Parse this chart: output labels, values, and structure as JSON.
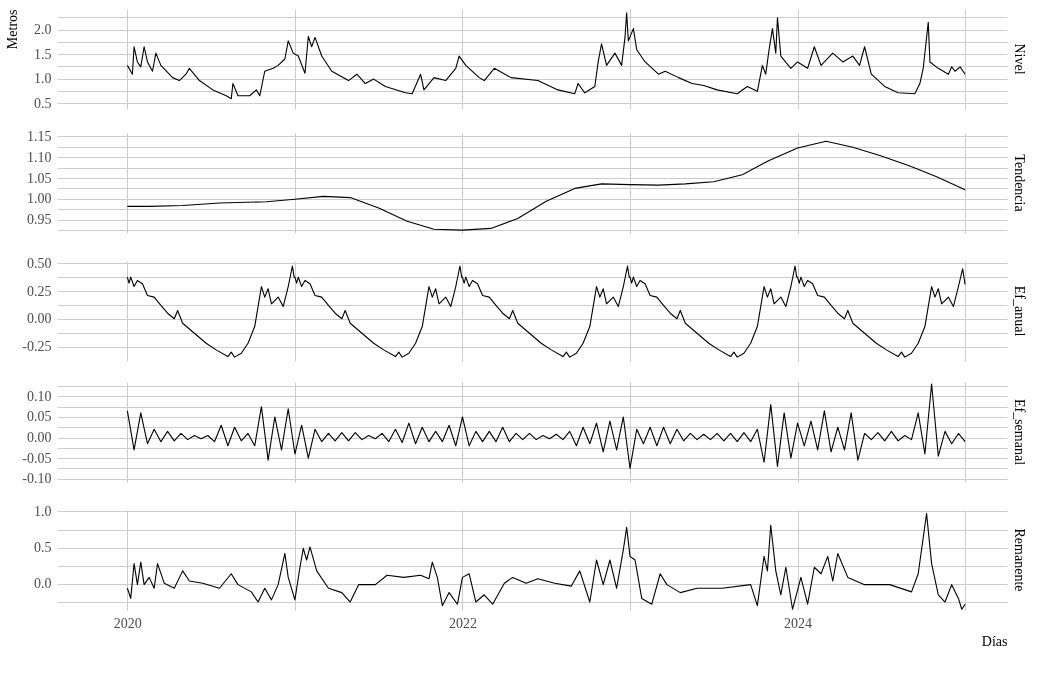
{
  "chart_data": [
    {
      "type": "line",
      "ylabel": "Metros",
      "y2label": "Nivel",
      "tick_labels": "y",
      "grid": true,
      "line_style": "solid",
      "color": "#000000",
      "x": [
        2020.0,
        2020.03,
        2020.04,
        2020.06,
        2020.08,
        2020.1,
        2020.12,
        2020.15,
        2020.17,
        2020.2,
        2020.27,
        2020.31,
        2020.35,
        2020.37,
        2020.43,
        2020.51,
        2020.59,
        2020.62,
        2020.63,
        2020.66,
        2020.73,
        2020.77,
        2020.79,
        2020.82,
        2020.87,
        2020.9,
        2020.94,
        2020.96,
        2020.99,
        2021.02,
        2021.06,
        2021.08,
        2021.1,
        2021.12,
        2021.16,
        2021.22,
        2021.32,
        2021.37,
        2021.42,
        2021.47,
        2021.54,
        2021.66,
        2021.7,
        2021.75,
        2021.77,
        2021.83,
        2021.9,
        2021.96,
        2021.98,
        2022.02,
        2022.1,
        2022.13,
        2022.19,
        2022.29,
        2022.45,
        2022.57,
        2022.67,
        2022.69,
        2022.73,
        2022.79,
        2022.81,
        2022.83,
        2022.86,
        2022.91,
        2022.95,
        2022.97,
        2022.98,
        2022.99,
        2023.02,
        2023.04,
        2023.09,
        2023.17,
        2023.21,
        2023.29,
        2023.37,
        2023.44,
        2023.52,
        2023.64,
        2023.7,
        2023.76,
        2023.79,
        2023.81,
        2023.83,
        2023.85,
        2023.87,
        2023.88,
        2023.9,
        2023.96,
        2024.0,
        2024.06,
        2024.1,
        2024.14,
        2024.21,
        2024.27,
        2024.33,
        2024.37,
        2024.4,
        2024.44,
        2024.52,
        2024.6,
        2024.7,
        2024.73,
        2024.75,
        2024.78,
        2024.79,
        2024.84,
        2024.9,
        2024.92,
        2024.94,
        2024.97,
        2025.0
      ],
      "values": [
        1.27,
        1.09,
        1.65,
        1.34,
        1.24,
        1.65,
        1.34,
        1.15,
        1.52,
        1.27,
        1.02,
        0.96,
        1.09,
        1.21,
        0.96,
        0.77,
        0.65,
        0.59,
        0.9,
        0.65,
        0.65,
        0.77,
        0.65,
        1.15,
        1.21,
        1.27,
        1.4,
        1.77,
        1.52,
        1.46,
        1.11,
        1.86,
        1.65,
        1.84,
        1.46,
        1.15,
        0.96,
        1.09,
        0.9,
        0.99,
        0.84,
        0.71,
        0.69,
        1.09,
        0.77,
        1.02,
        0.96,
        1.21,
        1.46,
        1.27,
        1.02,
        0.96,
        1.21,
        1.02,
        0.96,
        0.77,
        0.69,
        0.9,
        0.71,
        0.84,
        1.34,
        1.71,
        1.27,
        1.52,
        1.27,
        1.84,
        2.34,
        1.77,
        2.02,
        1.59,
        1.34,
        1.09,
        1.15,
        1.02,
        0.9,
        0.86,
        0.77,
        0.69,
        0.84,
        0.74,
        1.27,
        1.09,
        1.59,
        2.02,
        1.52,
        2.24,
        1.46,
        1.21,
        1.34,
        1.21,
        1.65,
        1.27,
        1.52,
        1.34,
        1.46,
        1.27,
        1.65,
        1.09,
        0.84,
        0.71,
        0.69,
        0.9,
        1.21,
        2.15,
        1.34,
        1.21,
        1.09,
        1.24,
        1.15,
        1.24,
        1.09
      ],
      "xlim": [
        2019.58,
        2025.25
      ],
      "xticks": [
        2020,
        {
          "value": 2021,
          "label": null
        },
        2022,
        {
          "value": 2023,
          "label": null
        },
        2024,
        {
          "value": 2025,
          "label": null
        }
      ],
      "ylim": [
        0.38,
        2.42
      ],
      "yticks": [
        0.5,
        {
          "value": 0.75,
          "label": null
        },
        {
          "value": 1.0,
          "label": "1.0"
        },
        {
          "value": 1.25,
          "label": null
        },
        1.5,
        {
          "value": 1.75,
          "label": null
        },
        {
          "value": 2.0,
          "label": "2.0"
        },
        {
          "value": 2.25,
          "label": null
        }
      ]
    },
    {
      "type": "line",
      "y2label": "Tendencia",
      "tick_labels": "y",
      "grid": true,
      "line_style": "solid",
      "color": "#000000",
      "x": [
        2020.0,
        2020.13,
        2020.33,
        2020.55,
        2020.83,
        2021.0,
        2021.17,
        2021.33,
        2021.5,
        2021.67,
        2021.83,
        2022.0,
        2022.17,
        2022.33,
        2022.5,
        2022.67,
        2022.83,
        2023.0,
        2023.17,
        2023.33,
        2023.5,
        2023.67,
        2023.83,
        2024.0,
        2024.17,
        2024.33,
        2024.5,
        2024.67,
        2024.83,
        2025.0
      ],
      "values": [
        0.982,
        0.982,
        0.984,
        0.99,
        0.993,
        0.999,
        1.006,
        1.003,
        0.978,
        0.946,
        0.927,
        0.925,
        0.929,
        0.953,
        0.994,
        1.025,
        1.036,
        1.034,
        1.033,
        1.036,
        1.041,
        1.058,
        1.092,
        1.122,
        1.138,
        1.124,
        1.103,
        1.079,
        1.053,
        1.022
      ],
      "xlim": [
        2019.58,
        2025.25
      ],
      "xticks": [
        2020,
        {
          "value": 2021,
          "label": null
        },
        2022,
        {
          "value": 2023,
          "label": null
        },
        2024,
        {
          "value": 2025,
          "label": null
        }
      ],
      "ylim": [
        0.918,
        1.158
      ],
      "yticks": [
        {
          "value": 0.925,
          "label": null
        },
        0.95,
        {
          "value": 0.975,
          "label": null
        },
        {
          "value": 1.0,
          "label": "1.00"
        },
        {
          "value": 1.025,
          "label": null
        },
        1.05,
        {
          "value": 1.075,
          "label": null
        },
        {
          "value": 1.1,
          "label": "1.10"
        },
        {
          "value": 1.125,
          "label": null
        },
        1.15
      ]
    },
    {
      "type": "line",
      "y2label": "Ef_anual",
      "tick_labels": "y",
      "grid": true,
      "line_style": "solid",
      "color": "#000000",
      "x": [
        2020,
        2020.01,
        2020.02,
        2020.04,
        2020.06,
        2020.09,
        2020.12,
        2020.16,
        2020.2,
        2020.24,
        2020.28,
        2020.3,
        2020.33,
        2020.4,
        2020.47,
        2020.53,
        2020.6,
        2020.62,
        2020.64,
        2020.68,
        2020.72,
        2020.76,
        2020.8,
        2020.82,
        2020.84,
        2020.86,
        2020.9,
        2020.93,
        2020.96,
        2020.985,
        2020.995,
        2021,
        2021.01,
        2021.02,
        2021.04,
        2021.06,
        2021.09,
        2021.12,
        2021.16,
        2021.2,
        2021.24,
        2021.28,
        2021.3,
        2021.33,
        2021.4,
        2021.47,
        2021.53,
        2021.6,
        2021.62,
        2021.64,
        2021.68,
        2021.72,
        2021.76,
        2021.8,
        2021.82,
        2021.84,
        2021.86,
        2021.9,
        2021.93,
        2021.96,
        2021.985,
        2021.995,
        2022,
        2022.01,
        2022.02,
        2022.04,
        2022.06,
        2022.09,
        2022.12,
        2022.16,
        2022.2,
        2022.24,
        2022.28,
        2022.3,
        2022.33,
        2022.4,
        2022.47,
        2022.53,
        2022.6,
        2022.62,
        2022.64,
        2022.68,
        2022.72,
        2022.76,
        2022.8,
        2022.82,
        2022.84,
        2022.86,
        2022.9,
        2022.93,
        2022.96,
        2022.985,
        2022.995,
        2023,
        2023.01,
        2023.02,
        2023.04,
        2023.06,
        2023.09,
        2023.12,
        2023.16,
        2023.2,
        2023.24,
        2023.28,
        2023.3,
        2023.33,
        2023.4,
        2023.47,
        2023.53,
        2023.6,
        2023.62,
        2023.64,
        2023.68,
        2023.72,
        2023.76,
        2023.8,
        2023.82,
        2023.84,
        2023.86,
        2023.9,
        2023.93,
        2023.96,
        2023.985,
        2023.995,
        2024,
        2024.01,
        2024.02,
        2024.04,
        2024.06,
        2024.09,
        2024.12,
        2024.16,
        2024.2,
        2024.24,
        2024.28,
        2024.3,
        2024.33,
        2024.4,
        2024.47,
        2024.53,
        2024.6,
        2024.62,
        2024.64,
        2024.68,
        2024.72,
        2024.76,
        2024.8,
        2024.82,
        2024.84,
        2024.86,
        2024.9,
        2024.93,
        2024.96,
        2024.985,
        2025.0
      ],
      "values": [
        0.375,
        0.32,
        0.375,
        0.29,
        0.345,
        0.315,
        0.21,
        0.195,
        0.12,
        0.05,
        0.0,
        0.075,
        -0.04,
        -0.13,
        -0.22,
        -0.28,
        -0.34,
        -0.3,
        -0.345,
        -0.31,
        -0.22,
        -0.07,
        0.29,
        0.195,
        0.27,
        0.135,
        0.195,
        0.11,
        0.29,
        0.475,
        0.375,
        0.375,
        0.32,
        0.375,
        0.29,
        0.345,
        0.315,
        0.21,
        0.195,
        0.12,
        0.05,
        0.0,
        0.075,
        -0.04,
        -0.13,
        -0.22,
        -0.28,
        -0.34,
        -0.3,
        -0.345,
        -0.31,
        -0.22,
        -0.07,
        0.29,
        0.195,
        0.27,
        0.135,
        0.195,
        0.11,
        0.29,
        0.475,
        0.375,
        0.375,
        0.32,
        0.375,
        0.29,
        0.345,
        0.315,
        0.21,
        0.195,
        0.12,
        0.05,
        0.0,
        0.075,
        -0.04,
        -0.13,
        -0.22,
        -0.28,
        -0.34,
        -0.3,
        -0.345,
        -0.31,
        -0.22,
        -0.07,
        0.29,
        0.195,
        0.27,
        0.135,
        0.195,
        0.11,
        0.29,
        0.475,
        0.375,
        0.375,
        0.32,
        0.375,
        0.29,
        0.345,
        0.315,
        0.21,
        0.195,
        0.12,
        0.05,
        0.0,
        0.075,
        -0.04,
        -0.13,
        -0.22,
        -0.28,
        -0.34,
        -0.3,
        -0.345,
        -0.31,
        -0.22,
        -0.07,
        0.29,
        0.195,
        0.27,
        0.135,
        0.195,
        0.11,
        0.29,
        0.475,
        0.375,
        0.375,
        0.32,
        0.375,
        0.29,
        0.345,
        0.315,
        0.21,
        0.195,
        0.12,
        0.05,
        0.0,
        0.075,
        -0.04,
        -0.13,
        -0.22,
        -0.28,
        -0.34,
        -0.3,
        -0.345,
        -0.31,
        -0.22,
        -0.07,
        0.29,
        0.195,
        0.27,
        0.135,
        0.195,
        0.11,
        0.29,
        0.45,
        0.31
      ],
      "xlim": [
        2019.58,
        2025.25
      ],
      "xticks": [
        2020,
        {
          "value": 2021,
          "label": null
        },
        2022,
        {
          "value": 2023,
          "label": null
        },
        2024,
        {
          "value": 2025,
          "label": null
        }
      ],
      "ylim": [
        -0.38,
        0.52
      ],
      "yticks": [
        {
          "value": -0.25,
          "label": "-0.25"
        },
        {
          "value": -0.125,
          "label": null
        },
        {
          "value": 0,
          "label": "0.00"
        },
        {
          "value": 0.125,
          "label": null
        },
        0.25,
        {
          "value": 0.375,
          "label": null
        },
        {
          "value": 0.5,
          "label": "0.50"
        }
      ]
    },
    {
      "type": "line",
      "y2label": "Ef_semanal",
      "tick_labels": "y",
      "grid": true,
      "line_style": "solid",
      "color": "#000000",
      "x": [
        2020.0,
        2020.04,
        2020.08,
        2020.12,
        2020.16,
        2020.2,
        2020.24,
        2020.28,
        2020.32,
        2020.36,
        2020.4,
        2020.44,
        2020.48,
        2020.52,
        2020.56,
        2020.6,
        2020.64,
        2020.68,
        2020.72,
        2020.76,
        2020.8,
        2020.84,
        2020.88,
        2020.92,
        2020.96,
        2021.0,
        2021.04,
        2021.08,
        2021.12,
        2021.16,
        2021.2,
        2021.24,
        2021.28,
        2021.32,
        2021.36,
        2021.4,
        2021.44,
        2021.48,
        2021.52,
        2021.56,
        2021.6,
        2021.64,
        2021.68,
        2021.72,
        2021.76,
        2021.8,
        2021.84,
        2021.88,
        2021.92,
        2021.96,
        2022.0,
        2022.04,
        2022.08,
        2022.12,
        2022.16,
        2022.2,
        2022.24,
        2022.28,
        2022.32,
        2022.36,
        2022.4,
        2022.44,
        2022.48,
        2022.52,
        2022.56,
        2022.6,
        2022.64,
        2022.68,
        2022.72,
        2022.76,
        2022.8,
        2022.84,
        2022.88,
        2022.92,
        2022.96,
        2023.0,
        2023.04,
        2023.08,
        2023.12,
        2023.16,
        2023.2,
        2023.24,
        2023.28,
        2023.32,
        2023.36,
        2023.4,
        2023.44,
        2023.48,
        2023.52,
        2023.56,
        2023.6,
        2023.64,
        2023.68,
        2023.72,
        2023.76,
        2023.8,
        2023.84,
        2023.88,
        2023.92,
        2023.96,
        2024.0,
        2024.04,
        2024.08,
        2024.12,
        2024.16,
        2024.2,
        2024.24,
        2024.28,
        2024.32,
        2024.36,
        2024.4,
        2024.44,
        2024.48,
        2024.52,
        2024.56,
        2024.6,
        2024.64,
        2024.68,
        2024.72,
        2024.76,
        2024.8,
        2024.84,
        2024.88,
        2024.92,
        2024.96,
        2025.0
      ],
      "values": [
        0.065,
        -0.03,
        0.06,
        -0.015,
        0.02,
        -0.01,
        0.015,
        -0.008,
        0.01,
        -0.005,
        0.005,
        -0.003,
        0.005,
        -0.01,
        0.03,
        -0.02,
        0.025,
        -0.008,
        0.01,
        -0.02,
        0.075,
        -0.055,
        0.05,
        -0.03,
        0.07,
        -0.04,
        0.03,
        -0.05,
        0.02,
        -0.01,
        0.01,
        -0.008,
        0.012,
        -0.008,
        0.012,
        -0.005,
        0.005,
        -0.003,
        0.01,
        -0.01,
        0.02,
        -0.012,
        0.035,
        -0.015,
        0.025,
        -0.01,
        0.015,
        -0.01,
        0.03,
        -0.02,
        0.05,
        -0.02,
        0.015,
        -0.01,
        0.015,
        -0.01,
        0.025,
        -0.01,
        0.01,
        -0.005,
        0.01,
        -0.005,
        0.005,
        -0.003,
        0.008,
        -0.005,
        0.015,
        -0.02,
        0.025,
        -0.015,
        0.035,
        -0.035,
        0.04,
        -0.03,
        0.05,
        -0.075,
        0.02,
        -0.015,
        0.025,
        -0.02,
        0.025,
        -0.015,
        0.02,
        -0.008,
        0.01,
        -0.005,
        0.008,
        -0.005,
        0.01,
        -0.008,
        0.01,
        -0.01,
        0.012,
        -0.01,
        0.02,
        -0.06,
        0.08,
        -0.07,
        0.06,
        -0.05,
        0.035,
        -0.02,
        0.04,
        -0.03,
        0.065,
        -0.035,
        0.025,
        -0.03,
        0.06,
        -0.055,
        0.01,
        -0.005,
        0.012,
        -0.008,
        0.015,
        -0.008,
        0.005,
        -0.005,
        0.06,
        -0.04,
        0.13,
        -0.045,
        0.015,
        -0.015,
        0.01,
        -0.01
      ],
      "xlim": [
        2019.58,
        2025.25
      ],
      "xticks": [
        2020,
        {
          "value": 2021,
          "label": null
        },
        2022,
        {
          "value": 2023,
          "label": null
        },
        2024,
        {
          "value": 2025,
          "label": null
        }
      ],
      "ylim": [
        -0.108,
        0.135
      ],
      "yticks": [
        {
          "value": -0.1,
          "label": "-0.10"
        },
        {
          "value": -0.075,
          "label": null
        },
        -0.05,
        {
          "value": -0.025,
          "label": null
        },
        {
          "value": 0,
          "label": "0.00"
        },
        {
          "value": 0.025,
          "label": null
        },
        0.05,
        {
          "value": 0.075,
          "label": null
        },
        {
          "value": 0.1,
          "label": "0.10"
        },
        {
          "value": 0.125,
          "label": null
        }
      ]
    },
    {
      "type": "line",
      "y2label": "Remanente",
      "xlabel": "Días",
      "grid": true,
      "line_style": "solid",
      "color": "#000000",
      "x": [
        2020.0,
        2020.02,
        2020.04,
        2020.06,
        2020.08,
        2020.1,
        2020.13,
        2020.16,
        2020.18,
        2020.22,
        2020.28,
        2020.33,
        2020.37,
        2020.45,
        2020.55,
        2020.62,
        2020.66,
        2020.74,
        2020.78,
        2020.82,
        2020.86,
        2020.9,
        2020.94,
        2020.96,
        2021.0,
        2021.03,
        2021.05,
        2021.07,
        2021.09,
        2021.13,
        2021.2,
        2021.28,
        2021.33,
        2021.38,
        2021.48,
        2021.55,
        2021.65,
        2021.75,
        2021.8,
        2021.82,
        2021.85,
        2021.88,
        2021.92,
        2021.97,
        2022.0,
        2022.04,
        2022.08,
        2022.13,
        2022.18,
        2022.25,
        2022.3,
        2022.38,
        2022.45,
        2022.55,
        2022.65,
        2022.7,
        2022.76,
        2022.8,
        2022.84,
        2022.88,
        2022.92,
        2022.96,
        2022.98,
        2023.0,
        2023.03,
        2023.07,
        2023.13,
        2023.18,
        2023.22,
        2023.3,
        2023.4,
        2023.55,
        2023.72,
        2023.76,
        2023.8,
        2023.82,
        2023.84,
        2023.87,
        2023.9,
        2023.93,
        2023.97,
        2024.02,
        2024.06,
        2024.1,
        2024.14,
        2024.18,
        2024.21,
        2024.24,
        2024.3,
        2024.4,
        2024.55,
        2024.68,
        2024.72,
        2024.77,
        2024.8,
        2024.84,
        2024.88,
        2024.92,
        2024.96,
        2024.98,
        2025.0
      ],
      "values": [
        -0.06,
        -0.2,
        0.28,
        -0.01,
        0.3,
        -0.01,
        0.09,
        -0.06,
        0.28,
        0.01,
        -0.06,
        0.18,
        0.04,
        0.01,
        -0.06,
        0.14,
        -0.01,
        -0.11,
        -0.25,
        -0.06,
        -0.22,
        -0.01,
        0.42,
        0.09,
        -0.22,
        0.23,
        0.49,
        0.33,
        0.51,
        0.18,
        -0.06,
        -0.12,
        -0.25,
        -0.01,
        -0.01,
        0.12,
        0.09,
        0.12,
        0.07,
        0.3,
        0.09,
        -0.3,
        -0.12,
        -0.28,
        0.09,
        0.14,
        -0.25,
        -0.15,
        -0.28,
        0.01,
        0.09,
        0.01,
        0.07,
        0.01,
        -0.03,
        0.18,
        -0.25,
        0.33,
        -0.01,
        0.33,
        -0.06,
        0.47,
        0.78,
        0.38,
        0.33,
        -0.2,
        -0.28,
        0.14,
        -0.01,
        -0.12,
        -0.06,
        -0.06,
        -0.01,
        -0.3,
        0.38,
        0.18,
        0.81,
        0.18,
        -0.15,
        0.23,
        -0.35,
        0.09,
        -0.28,
        0.23,
        0.14,
        0.38,
        0.04,
        0.42,
        0.09,
        -0.01,
        -0.01,
        -0.11,
        0.14,
        0.97,
        0.28,
        -0.15,
        -0.25,
        -0.01,
        -0.2,
        -0.35,
        -0.28
      ],
      "xlim": [
        2019.58,
        2025.25
      ],
      "xticks": [
        2020,
        {
          "value": 2021,
          "label": null
        },
        2022,
        {
          "value": 2023,
          "label": null
        },
        2024,
        {
          "value": 2025,
          "label": null
        }
      ],
      "ylim": [
        -0.36,
        1.02
      ],
      "yticks": [
        {
          "value": -0.25,
          "label": null
        },
        {
          "value": 0,
          "label": "0.0"
        },
        {
          "value": 0.25,
          "label": null
        },
        0.5,
        {
          "value": 0.75,
          "label": null
        },
        {
          "value": 1,
          "label": "1.0"
        }
      ]
    }
  ]
}
